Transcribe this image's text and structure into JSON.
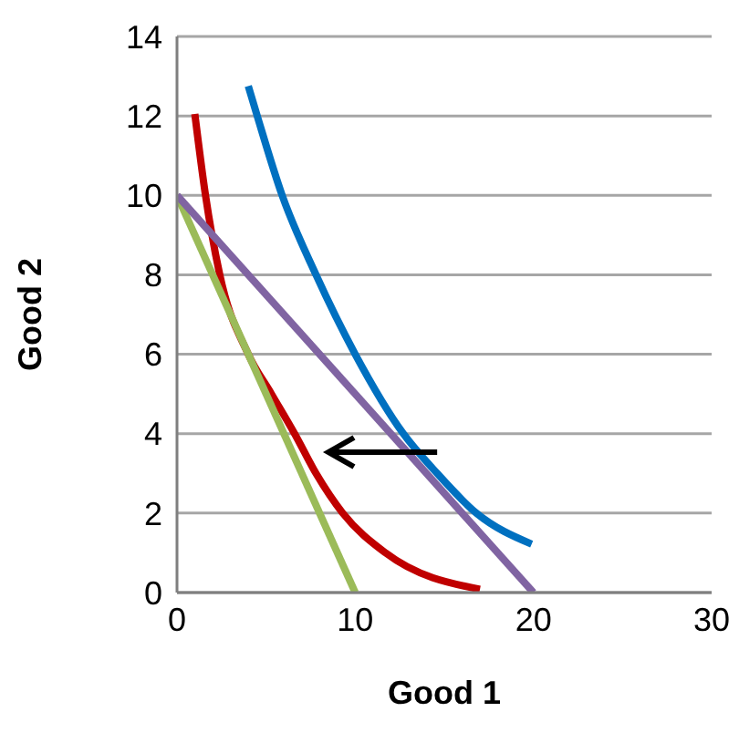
{
  "chart_data": {
    "type": "line",
    "xlabel": "Good 1",
    "ylabel": "Good 2",
    "xlim": [
      0,
      30
    ],
    "xticks": [
      0,
      10,
      20,
      30
    ],
    "ylim": [
      0,
      14
    ],
    "yticks": [
      0,
      2,
      4,
      6,
      8,
      10,
      12,
      14
    ],
    "grid": "y",
    "marker": "none",
    "series": [
      {
        "color": "#c00000",
        "x": [
          1,
          1.6,
          2.4,
          4,
          5.3,
          6.6,
          7.8,
          9.3,
          11.7,
          17
        ],
        "values": [
          12.05,
          10,
          8,
          6,
          5,
          4,
          3,
          2,
          1,
          0.08
        ]
      },
      {
        "color": "#0070c0",
        "x": [
          4,
          4.5,
          5.9,
          7.8,
          10,
          12.7,
          14.6,
          16.8,
          19.9
        ],
        "values": [
          12.75,
          12,
          10,
          8,
          6,
          4,
          3,
          2,
          1.22
        ]
      },
      {
        "color": "#9bbb59",
        "x": [
          0,
          10
        ],
        "values": [
          10,
          0
        ]
      },
      {
        "color": "#8064a2",
        "x": [
          0,
          20
        ],
        "values": [
          10,
          0
        ]
      }
    ]
  }
}
